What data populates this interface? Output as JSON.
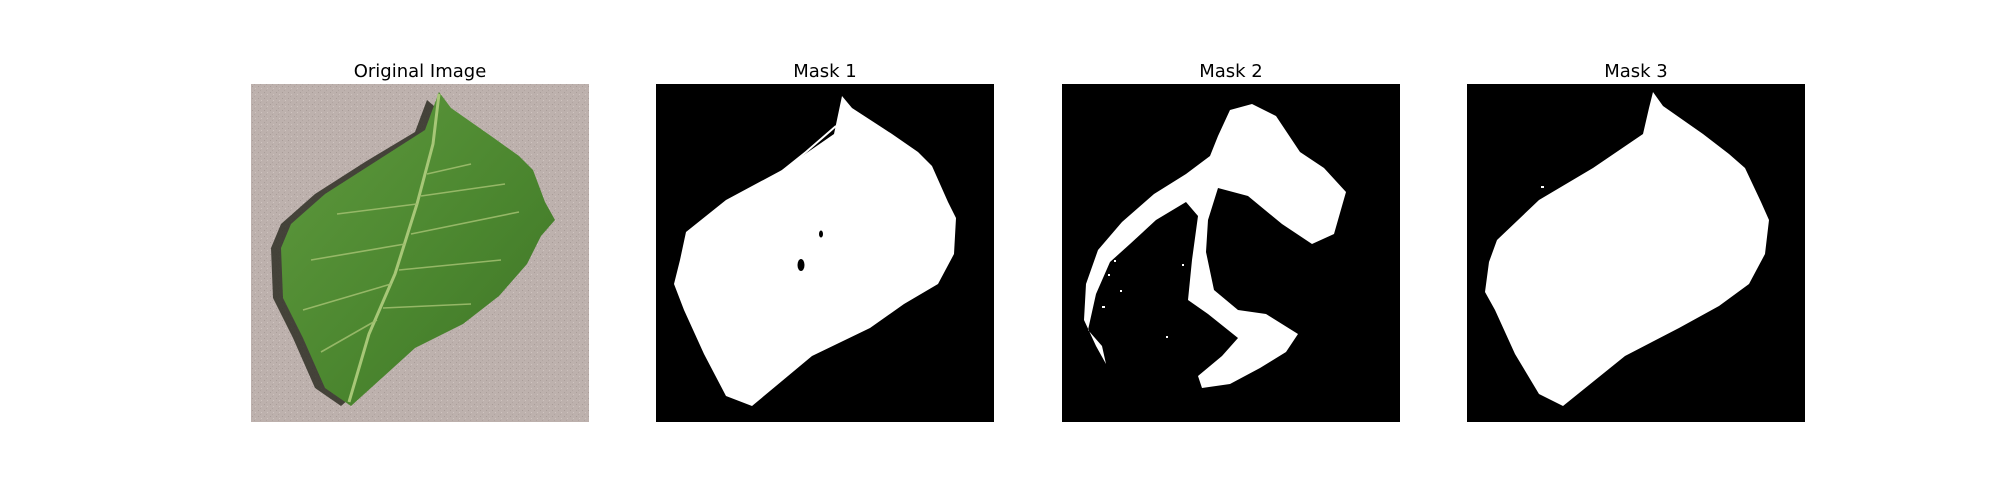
{
  "figure": {
    "panels": [
      {
        "title": "Original Image",
        "content": "leaf photo on gray background"
      },
      {
        "title": "Mask 1",
        "content": "binary segmentation mask"
      },
      {
        "title": "Mask 2",
        "content": "binary segmentation mask"
      },
      {
        "title": "Mask 3",
        "content": "binary segmentation mask"
      }
    ],
    "colors": {
      "background": "#ffffff",
      "photo_background": "#bdb1ad",
      "leaf_green": "#4f8a32",
      "leaf_vein": "#a7c777",
      "mask_background": "#000000",
      "mask_foreground": "#ffffff"
    }
  }
}
